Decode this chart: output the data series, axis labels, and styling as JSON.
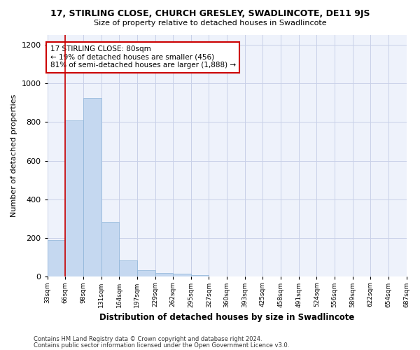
{
  "title_line1": "17, STIRLING CLOSE, CHURCH GRESLEY, SWADLINCOTE, DE11 9JS",
  "title_line2": "Size of property relative to detached houses in Swadlincote",
  "xlabel": "Distribution of detached houses by size in Swadlincote",
  "ylabel": "Number of detached properties",
  "bar_values": [
    190,
    810,
    925,
    285,
    85,
    35,
    20,
    15,
    10,
    0,
    0,
    0,
    0,
    0,
    0,
    0,
    0,
    0,
    0,
    0
  ],
  "categories": [
    "33sqm",
    "66sqm",
    "98sqm",
    "131sqm",
    "164sqm",
    "197sqm",
    "229sqm",
    "262sqm",
    "295sqm",
    "327sqm",
    "360sqm",
    "393sqm",
    "425sqm",
    "458sqm",
    "491sqm",
    "524sqm",
    "556sqm",
    "589sqm",
    "622sqm",
    "654sqm",
    "687sqm"
  ],
  "bar_color": "#c5d8f0",
  "bar_edge_color": "#8cb4d8",
  "vline_x": 1,
  "vline_color": "#cc0000",
  "annotation_text": "17 STIRLING CLOSE: 80sqm\n← 19% of detached houses are smaller (456)\n81% of semi-detached houses are larger (1,888) →",
  "annotation_box_color": "#cc0000",
  "ylim": [
    0,
    1250
  ],
  "yticks": [
    0,
    200,
    400,
    600,
    800,
    1000,
    1200
  ],
  "footer_line1": "Contains HM Land Registry data © Crown copyright and database right 2024.",
  "footer_line2": "Contains public sector information licensed under the Open Government Licence v3.0.",
  "bg_color": "#eef2fb",
  "grid_color": "#c8d0e8"
}
